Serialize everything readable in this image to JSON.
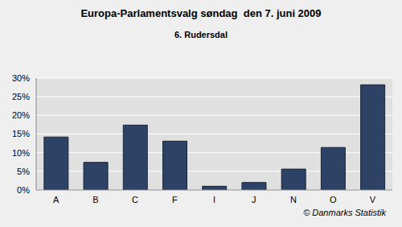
{
  "chart_data": {
    "type": "bar",
    "title": "Europa-Parlamentsvalg søndag  den 7. juni 2009",
    "subtitle": "6. Rudersdal",
    "annotations": [
      "© Danmarks Statistik"
    ],
    "categories": [
      "A",
      "B",
      "C",
      "F",
      "I",
      "J",
      "N",
      "O",
      "V"
    ],
    "values": [
      14.2,
      7.4,
      17.4,
      13.1,
      1.0,
      2.0,
      5.6,
      11.4,
      28.2
    ],
    "color": "#2e4266",
    "ylim": [
      0,
      30
    ],
    "yticks": [
      {
        "value": 0,
        "label": "0%"
      },
      {
        "value": 5,
        "label": "5%"
      },
      {
        "value": 10,
        "label": "10%"
      },
      {
        "value": 15,
        "label": "15%"
      },
      {
        "value": 20,
        "label": "20%"
      },
      {
        "value": 25,
        "label": "25%"
      },
      {
        "value": 30,
        "label": "30%"
      }
    ],
    "grid": true
  }
}
